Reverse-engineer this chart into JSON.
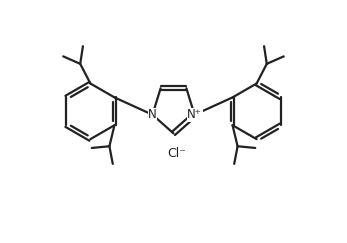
{
  "background_color": "#ffffff",
  "line_color": "#222222",
  "line_width": 1.6,
  "cl_label": "Cl⁻",
  "n_plus_label": "N⁺",
  "n_label": "N",
  "figsize": [
    3.47,
    2.43
  ],
  "dpi": 100
}
